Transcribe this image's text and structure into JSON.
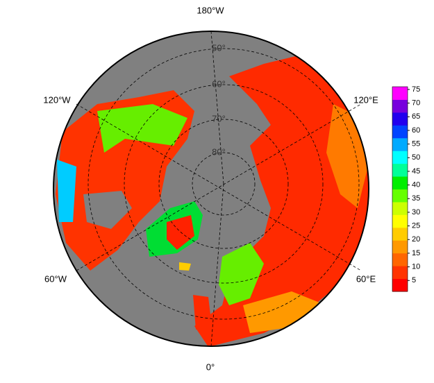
{
  "map": {
    "lon_labels": [
      "180°W",
      "120°W",
      "120°E",
      "60°W",
      "60°E",
      "0°"
    ],
    "lat_labels": [
      "50°",
      "60°",
      "70°",
      "80°"
    ],
    "colorbar": {
      "lim": [
        1,
        76
      ],
      "ticks": [
        5,
        10,
        15,
        20,
        25,
        30,
        35,
        40,
        45,
        50,
        55,
        60,
        65,
        70,
        75
      ],
      "colors": [
        "#ff0000",
        "#ff3300",
        "#ff6600",
        "#ff9900",
        "#ffcc00",
        "#ffff00",
        "#ccff00",
        "#66ff00",
        "#00ee00",
        "#00ff99",
        "#00ffff",
        "#00aaff",
        "#0044ff",
        "#2200ee",
        "#7700dd",
        "#ff00ff"
      ]
    }
  }
}
